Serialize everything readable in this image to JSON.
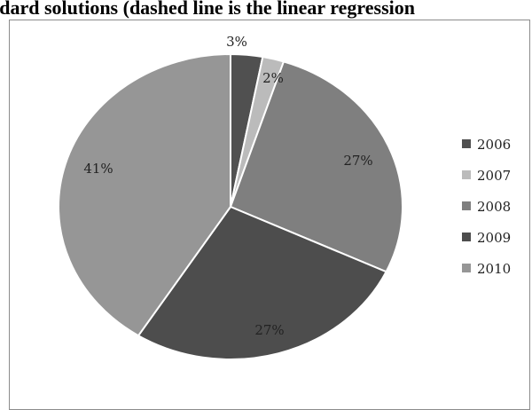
{
  "caption": "ndard solutions (dashed line is the linear regression",
  "chart_data": {
    "type": "pie",
    "categories": [
      "2006",
      "2007",
      "2008",
      "2009",
      "2010"
    ],
    "values": [
      3,
      2,
      27,
      27,
      41
    ],
    "labels": [
      "3%",
      "2%",
      "27%",
      "27%",
      "41%"
    ],
    "colors": [
      "#505050",
      "#bbbbbb",
      "#7f7f7f",
      "#4d4d4d",
      "#969696"
    ],
    "legend_placement": "right"
  }
}
